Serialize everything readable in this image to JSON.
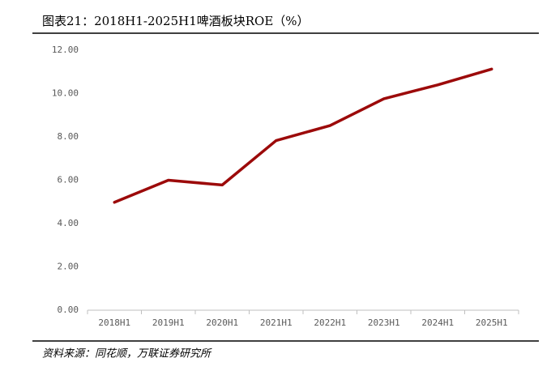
{
  "chart_data": {
    "type": "line",
    "title": "图表21：2018H1-2025H1啤酒板块ROE（%）",
    "source": "资料来源：同花顺，万联证券研究所",
    "categories": [
      "2018H1",
      "2019H1",
      "2020H1",
      "2021H1",
      "2022H1",
      "2023H1",
      "2024H1",
      "2025H1"
    ],
    "values": [
      4.98,
      6.0,
      5.78,
      7.83,
      8.52,
      9.76,
      10.4,
      11.13
    ],
    "color": "#9c0a0a",
    "ylim": [
      0,
      12
    ],
    "yticks": [
      {
        "value": 0,
        "label": "0.00"
      },
      {
        "value": 2,
        "label": "2.00"
      },
      {
        "value": 4,
        "label": "4.00"
      },
      {
        "value": 6,
        "label": "6.00"
      },
      {
        "value": 8,
        "label": "8.00"
      },
      {
        "value": 10,
        "label": "10.00"
      },
      {
        "value": 12,
        "label": "12.00"
      }
    ],
    "grid": false
  }
}
